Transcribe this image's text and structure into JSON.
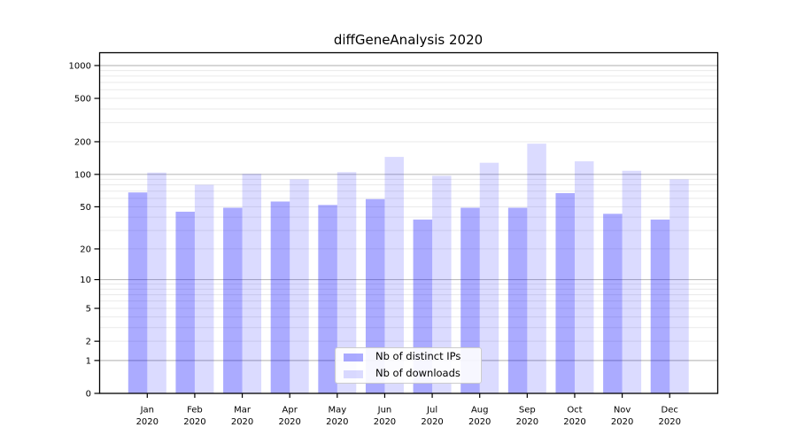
{
  "figure": {
    "title": "diffGeneAnalysis 2020",
    "background": "#ffffff"
  },
  "colors": {
    "bar_ips_fill": "rgba(0,0,255,0.33)",
    "bar_downloads_fill": "rgba(0,0,255,0.14)",
    "bar_ips_hex": "#ababfa",
    "bar_downloads_hex": "#dbdbfb",
    "grid_major": "#bdbdbd",
    "grid_minor": "#eaeaea",
    "axis": "#000000",
    "text": "#000000",
    "legend_border": "#cccccc"
  },
  "y_axis": {
    "scale": "symlog",
    "ticks": [
      {
        "label": "1000",
        "value": 1000
      },
      {
        "label": "500",
        "value": 500
      },
      {
        "label": "200",
        "value": 200
      },
      {
        "label": "100",
        "value": 100
      },
      {
        "label": "50",
        "value": 50
      },
      {
        "label": "20",
        "value": 20
      },
      {
        "label": "10",
        "value": 10
      },
      {
        "label": "5",
        "value": 5
      },
      {
        "label": "2",
        "value": 2
      },
      {
        "label": "1",
        "value": 1
      },
      {
        "label": "0",
        "value": 0
      }
    ]
  },
  "legend": {
    "items": [
      {
        "label": "Nb of distinct IPs",
        "color_key": "bar_ips_fill"
      },
      {
        "label": "Nb of downloads",
        "color_key": "bar_downloads_fill"
      }
    ]
  },
  "chart_data": {
    "type": "bar",
    "title": "diffGeneAnalysis 2020",
    "categories": [
      "Jan 2020",
      "Feb 2020",
      "Mar 2020",
      "Apr 2020",
      "May 2020",
      "Jun 2020",
      "Jul 2020",
      "Aug 2020",
      "Sep 2020",
      "Oct 2020",
      "Nov 2020",
      "Dec 2020"
    ],
    "series": [
      {
        "name": "Nb of distinct IPs",
        "color_key": "bar_ips_fill",
        "values": [
          68,
          45,
          49,
          56,
          52,
          59,
          38,
          49,
          49,
          67,
          43,
          38
        ]
      },
      {
        "name": "Nb of downloads",
        "color_key": "bar_downloads_fill",
        "values": [
          104,
          80,
          101,
          90,
          105,
          145,
          97,
          128,
          192,
          132,
          108,
          90
        ]
      }
    ],
    "xlabel": "",
    "ylabel": "",
    "yscale": "symlog",
    "y_tick_values": [
      0,
      1,
      2,
      5,
      10,
      20,
      50,
      100,
      200,
      500,
      1000
    ],
    "ylim": [
      0,
      1300
    ],
    "grid": true,
    "grid_minor": true,
    "legend_position": "lower center inside plot"
  }
}
